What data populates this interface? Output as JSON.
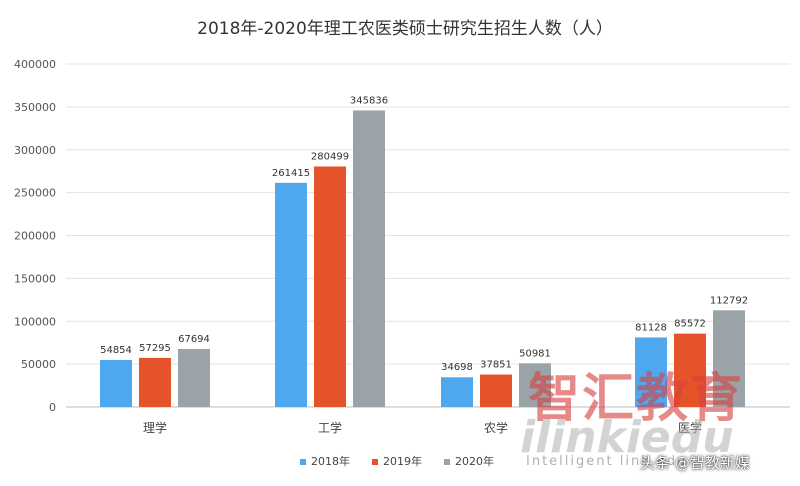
{
  "chart_data": {
    "type": "bar",
    "title": "2018年-2020年理工农医类硕士研究生招生人数（人）",
    "categories": [
      "理学",
      "工学",
      "农学",
      "医学"
    ],
    "series": [
      {
        "name": "2018年",
        "color": "#4FA8EE",
        "values": [
          54854,
          261415,
          34698,
          81128
        ]
      },
      {
        "name": "2019年",
        "color": "#E5532B",
        "values": [
          57295,
          280499,
          37851,
          85572
        ]
      },
      {
        "name": "2020年",
        "color": "#9AA4A8",
        "values": [
          67694,
          345836,
          50981,
          112792
        ]
      }
    ],
    "y_ticks": [
      "0",
      "50000",
      "100000",
      "150000",
      "200000",
      "250000",
      "300000",
      "350000",
      "400000"
    ],
    "ylim": [
      0,
      400000
    ],
    "grid": true,
    "legend_position": "bottom"
  },
  "watermark": {
    "cn": "智汇教育",
    "en": "ilinkiedu",
    "sub": "Intelligent link edu"
  },
  "credit": "头条 @智教新媒"
}
